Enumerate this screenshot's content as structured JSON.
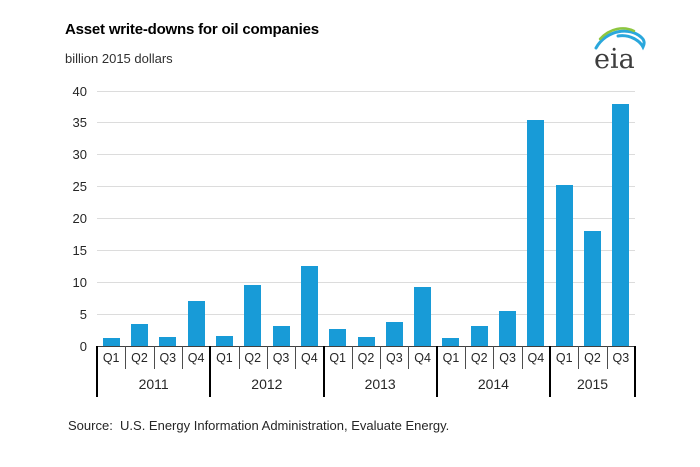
{
  "header": {
    "title": "Asset write-downs for oil companies",
    "subtitle": "billion 2015 dollars"
  },
  "logo": {
    "text": "eia"
  },
  "footer": {
    "source": "Source:  U.S. Energy Information Administration, Evaluate Energy."
  },
  "chart_data": {
    "type": "bar",
    "title": "Asset write-downs for oil companies",
    "ylabel": "billion 2015 dollars",
    "xlabel": "",
    "ylim": [
      0,
      40
    ],
    "ytick_step": 5,
    "grid": true,
    "legend": "none",
    "bar_color": "#189bd7",
    "gridline_color": "#dcdcdc",
    "years": [
      {
        "label": "2011",
        "quarters": [
          "Q1",
          "Q2",
          "Q3",
          "Q4"
        ],
        "values": [
          1.2,
          3.4,
          1.4,
          7.0
        ]
      },
      {
        "label": "2012",
        "quarters": [
          "Q1",
          "Q2",
          "Q3",
          "Q4"
        ],
        "values": [
          1.5,
          9.6,
          3.1,
          12.5
        ]
      },
      {
        "label": "2013",
        "quarters": [
          "Q1",
          "Q2",
          "Q3",
          "Q4"
        ],
        "values": [
          2.7,
          1.4,
          3.7,
          9.2
        ]
      },
      {
        "label": "2014",
        "quarters": [
          "Q1",
          "Q2",
          "Q3",
          "Q4"
        ],
        "values": [
          1.3,
          3.1,
          5.5,
          35.5
        ]
      },
      {
        "label": "2015",
        "quarters": [
          "Q1",
          "Q2",
          "Q3"
        ],
        "values": [
          25.3,
          18.0,
          38.0
        ]
      }
    ]
  }
}
